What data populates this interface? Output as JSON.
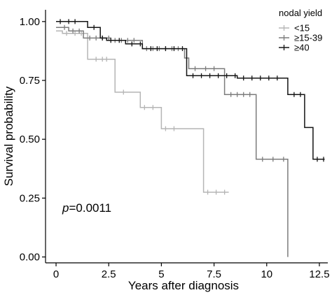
{
  "chart_data": {
    "type": "line",
    "subtype": "kaplan-meier",
    "title": "",
    "xlabel": "Years after diagnosis",
    "ylabel": "Survival probability",
    "xlim": [
      -0.5,
      12.9
    ],
    "ylim": [
      -0.025,
      1.05
    ],
    "xticks": [
      0,
      2.5,
      5,
      7.5,
      10,
      12.5
    ],
    "xtick_labels": [
      "0",
      "2.5",
      "5",
      "7.5",
      "10",
      "12.5"
    ],
    "yticks": [
      0,
      0.25,
      0.5,
      0.75,
      1.0
    ],
    "ytick_labels": [
      "0.00",
      "0.25",
      "0.50",
      "0.75",
      "1.00"
    ],
    "grid": false,
    "legend": {
      "title": "nodal yield",
      "position": "top-right"
    },
    "annotation": {
      "p_label": "p",
      "p_value": "=0.0011"
    },
    "series": [
      {
        "name": "<15",
        "color": "#b5b5b5",
        "steps": [
          [
            0,
            0.96
          ],
          [
            0.3,
            0.95
          ],
          [
            1.5,
            0.84
          ],
          [
            2.8,
            0.7
          ],
          [
            4.0,
            0.635
          ],
          [
            5.0,
            0.545
          ],
          [
            7.0,
            0.275
          ],
          [
            8.2,
            0.275
          ]
        ],
        "censor_x": [
          0.5,
          0.9,
          1.2,
          1.9,
          2.2,
          2.4,
          3.2,
          4.2,
          4.6,
          5.2,
          5.6,
          7.2,
          7.6,
          8.0
        ]
      },
      {
        "name": "≥15-39",
        "color": "#7c7c7c",
        "steps": [
          [
            0,
            0.975
          ],
          [
            0.6,
            0.96
          ],
          [
            1.3,
            0.93
          ],
          [
            2.6,
            0.92
          ],
          [
            4.1,
            0.885
          ],
          [
            6.1,
            0.845
          ],
          [
            6.3,
            0.8
          ],
          [
            8.0,
            0.69
          ],
          [
            9.5,
            0.415
          ],
          [
            11.0,
            0.0
          ]
        ],
        "censor_x": [
          0.4,
          0.8,
          1.1,
          1.6,
          1.9,
          2.2,
          2.5,
          2.8,
          3.1,
          3.4,
          3.7,
          4.3,
          4.6,
          4.9,
          5.2,
          5.5,
          5.8,
          6.6,
          7.1,
          7.5,
          8.3,
          8.6,
          8.9,
          9.2,
          9.8,
          10.3,
          10.8
        ]
      },
      {
        "name": "≥40",
        "color": "#141414",
        "steps": [
          [
            0,
            1.0
          ],
          [
            1.5,
            0.975
          ],
          [
            2.1,
            0.93
          ],
          [
            2.4,
            0.92
          ],
          [
            3.3,
            0.905
          ],
          [
            4.1,
            0.885
          ],
          [
            6.2,
            0.77
          ],
          [
            8.6,
            0.76
          ],
          [
            11.0,
            0.69
          ],
          [
            11.8,
            0.55
          ],
          [
            12.2,
            0.415
          ],
          [
            12.75,
            0.415
          ]
        ],
        "censor_x": [
          0.2,
          0.6,
          0.9,
          1.8,
          2.2,
          2.6,
          3.0,
          3.6,
          4.0,
          4.5,
          4.8,
          5.2,
          5.6,
          6.0,
          6.5,
          6.9,
          7.3,
          7.7,
          8.1,
          8.5,
          8.9,
          9.3,
          9.7,
          10.1,
          10.5,
          11.3,
          11.6,
          12.4,
          12.7
        ]
      }
    ]
  }
}
